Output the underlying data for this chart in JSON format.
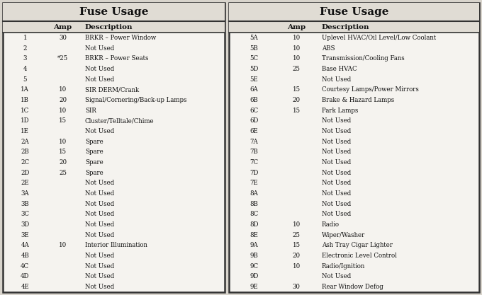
{
  "title": "Fuse Usage",
  "header": [
    "Amp",
    "Description"
  ],
  "left_rows": [
    [
      "1",
      "30",
      "BRKR – Power Window"
    ],
    [
      "2",
      "",
      "Not Used"
    ],
    [
      "3",
      "*25",
      "BRKR – Power Seats"
    ],
    [
      "4",
      "",
      "Not Used"
    ],
    [
      "5",
      "",
      "Not Used"
    ],
    [
      "1A",
      "10",
      "SIR DERM/Crank"
    ],
    [
      "1B",
      "20",
      "Signal/Cornering/Back-up Lamps"
    ],
    [
      "1C",
      "10",
      "SIR"
    ],
    [
      "1D",
      "15",
      "Cluster/Telltale/Chime"
    ],
    [
      "1E",
      "",
      "Not Used"
    ],
    [
      "2A",
      "10",
      "Spare"
    ],
    [
      "2B",
      "15",
      "Spare"
    ],
    [
      "2C",
      "20",
      "Spare"
    ],
    [
      "2D",
      "25",
      "Spare"
    ],
    [
      "2E",
      "",
      "Not Used"
    ],
    [
      "3A",
      "",
      "Not Used"
    ],
    [
      "3B",
      "",
      "Not Used"
    ],
    [
      "3C",
      "",
      "Not Used"
    ],
    [
      "3D",
      "",
      "Not Used"
    ],
    [
      "3E",
      "",
      "Not Used"
    ],
    [
      "4A",
      "10",
      "Interior Illumination"
    ],
    [
      "4B",
      "",
      "Not Used"
    ],
    [
      "4C",
      "",
      "Not Used"
    ],
    [
      "4D",
      "",
      "Not Used"
    ],
    [
      "4E",
      "",
      "Not Used"
    ]
  ],
  "right_rows": [
    [
      "5A",
      "10",
      "Uplevel HVAC/Oil Level/Low Coolant"
    ],
    [
      "5B",
      "10",
      "ABS"
    ],
    [
      "5C",
      "10",
      "Transmission/Cooling Fans"
    ],
    [
      "5D",
      "25",
      "Base HVAC"
    ],
    [
      "5E",
      "",
      "Not Used"
    ],
    [
      "6A",
      "15",
      "Courtesy Lamps/Power Mirrors"
    ],
    [
      "6B",
      "20",
      "Brake & Hazard Lamps"
    ],
    [
      "6C",
      "15",
      "Park Lamps"
    ],
    [
      "6D",
      "",
      "Not Used"
    ],
    [
      "6E",
      "",
      "Not Used"
    ],
    [
      "7A",
      "",
      "Not Used"
    ],
    [
      "7B",
      "",
      "Not Used"
    ],
    [
      "7C",
      "",
      "Not Used"
    ],
    [
      "7D",
      "",
      "Not Used"
    ],
    [
      "7E",
      "",
      "Not Used"
    ],
    [
      "8A",
      "",
      "Not Used"
    ],
    [
      "8B",
      "",
      "Not Used"
    ],
    [
      "8C",
      "",
      "Not Used"
    ],
    [
      "8D",
      "10",
      "Radio"
    ],
    [
      "8E",
      "25",
      "Wiper/Washer"
    ],
    [
      "9A",
      "15",
      "Ash Tray Cigar Lighter"
    ],
    [
      "9B",
      "20",
      "Electronic Level Control"
    ],
    [
      "9C",
      "10",
      "Radio/Ignition"
    ],
    [
      "9D",
      "",
      "Not Used"
    ],
    [
      "9E",
      "30",
      "Rear Window Defog"
    ]
  ],
  "bg_color": "#d8d4cc",
  "table_bg": "#f5f3ef",
  "title_bg": "#e0dcd4",
  "border_color": "#333333",
  "text_color": "#111111",
  "title_fontsize": 11,
  "header_fontsize": 7.5,
  "row_fontsize": 6.2,
  "fig_width": 6.8,
  "fig_height": 4.17,
  "dpi": 100
}
